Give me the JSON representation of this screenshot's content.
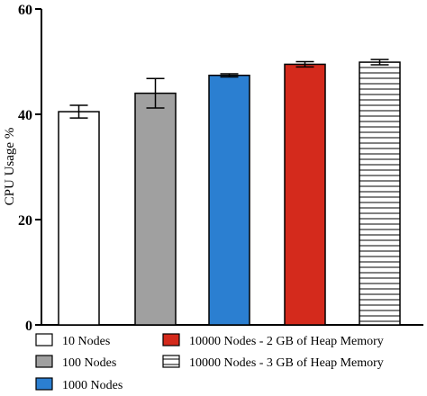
{
  "chart_data": {
    "type": "bar",
    "ylabel": "CPU Usage %",
    "xlabel": "",
    "title": "",
    "ylim": [
      0,
      60
    ],
    "yticks": [
      0,
      20,
      40,
      60
    ],
    "grid": false,
    "legend_position": "bottom",
    "series": [
      {
        "name": "10 Nodes",
        "value": 40.5,
        "error": 1.2,
        "fill": "#ffffff",
        "pattern": "none"
      },
      {
        "name": "100 Nodes",
        "value": 44.0,
        "error": 2.8,
        "fill": "#a0a0a0",
        "pattern": "none"
      },
      {
        "name": "1000 Nodes",
        "value": 47.4,
        "error": 0.3,
        "fill": "#2b7fd1",
        "pattern": "none"
      },
      {
        "name": "10000 Nodes - 2 GB of Heap Memory",
        "value": 49.5,
        "error": 0.5,
        "fill": "#d42a1c",
        "pattern": "none"
      },
      {
        "name": "10000 Nodes - 3 GB of Heap Memory",
        "value": 49.9,
        "error": 0.5,
        "fill": "#ffffff",
        "pattern": "horizontal-stripes"
      }
    ]
  }
}
